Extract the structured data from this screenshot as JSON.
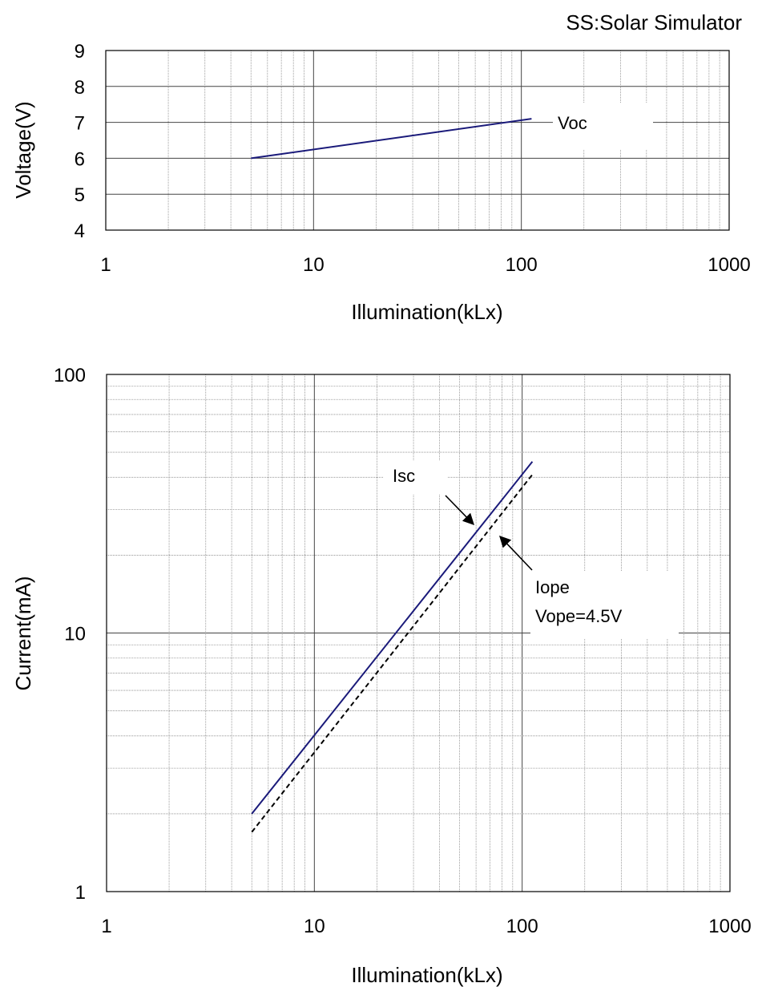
{
  "note": "SS:Solar Simulator",
  "colors": {
    "isc_line": "#1a1a7a",
    "voc_line": "#1a1a7a",
    "iope_line": "#000000"
  },
  "chart_data": [
    {
      "type": "line",
      "x_scale": "log",
      "xlim": [
        1,
        1000
      ],
      "ylim": [
        4,
        9
      ],
      "grid": true,
      "xlabel": "Illumination(kLx)",
      "ylabel": "Voltage(V)",
      "x_ticks": [
        "1",
        "10",
        "100",
        "1000"
      ],
      "y_ticks": [
        "4",
        "5",
        "6",
        "7",
        "8",
        "9"
      ],
      "series": [
        {
          "name": "Voc",
          "style": "solid",
          "x": [
            5,
            112
          ],
          "y": [
            6.0,
            7.1
          ]
        }
      ]
    },
    {
      "type": "line",
      "x_scale": "log",
      "y_scale": "log",
      "xlim": [
        1,
        1000
      ],
      "ylim": [
        1,
        100
      ],
      "grid": true,
      "xlabel": "Illumination(kLx)",
      "ylabel": "Current(mA)",
      "x_ticks": [
        "1",
        "10",
        "100",
        "1000"
      ],
      "y_ticks": [
        "1",
        "10",
        "100"
      ],
      "series": [
        {
          "name": "Isc",
          "style": "solid",
          "x": [
            5,
            112
          ],
          "y": [
            2.0,
            46
          ]
        },
        {
          "name": "Iope",
          "style": "dashed",
          "x": [
            5,
            112
          ],
          "y": [
            1.7,
            41
          ]
        }
      ],
      "annotations": [
        "Isc",
        "Iope",
        "Vope=4.5V"
      ]
    }
  ]
}
